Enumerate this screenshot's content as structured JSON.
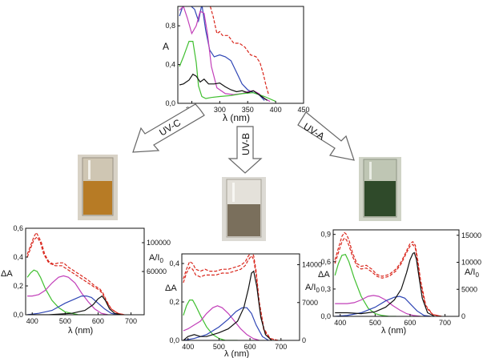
{
  "colors": {
    "black": "#111111",
    "red": "#d9261c",
    "green": "#3fbf2f",
    "magenta": "#c23fb9",
    "blue": "#2f46b5"
  },
  "arrows": [
    {
      "label": "UV-C"
    },
    {
      "label": "UV-B"
    },
    {
      "label": "UV-A"
    }
  ],
  "photos": [
    {
      "description_icon": "cuvette-amber-solution-icon",
      "tint": "#b77b25"
    },
    {
      "description_icon": "cuvette-grey-solution-icon",
      "tint": "#7a6f5c"
    },
    {
      "description_icon": "cuvette-green-solution-icon",
      "tint": "#2f4a2a"
    }
  ],
  "chart_data": [
    {
      "type": "line",
      "xlabel": "λ (nm)",
      "ylabel": "A",
      "xlim": [
        225,
        450
      ],
      "ylim": [
        0,
        1.0
      ],
      "xticks": [
        "250",
        "300",
        "350",
        "400",
        "450"
      ],
      "xtick_labels_shown": [
        "250",
        "300",
        "350",
        "400",
        "450"
      ],
      "yticks": [
        "0,0",
        "0,4",
        "0,8"
      ],
      "series": [
        {
          "color": "red",
          "dashed": true,
          "x": [
            283,
            288,
            295,
            300,
            305,
            315,
            325,
            335,
            345,
            355,
            365,
            372,
            378,
            383,
            388
          ],
          "y": [
            1.0,
            0.9,
            0.72,
            0.74,
            0.7,
            0.7,
            0.62,
            0.62,
            0.58,
            0.5,
            0.48,
            0.42,
            0.3,
            0.18,
            0.08
          ]
        },
        {
          "color": "blue",
          "x": [
            228,
            235,
            245,
            255,
            262,
            268,
            275,
            282,
            290,
            300,
            310,
            320,
            330,
            340,
            350,
            360,
            370,
            380
          ],
          "y": [
            0.9,
            1.02,
            1.02,
            0.97,
            0.85,
            1.02,
            0.75,
            0.55,
            0.48,
            0.5,
            0.48,
            0.44,
            0.32,
            0.2,
            0.14,
            0.11,
            0.09,
            0.03
          ]
        },
        {
          "color": "magenta",
          "x": [
            228,
            235,
            242,
            250,
            258,
            265,
            272,
            278,
            285,
            295,
            310,
            325,
            340,
            350,
            360,
            370,
            380,
            390
          ],
          "y": [
            0.96,
            1.0,
            0.88,
            0.72,
            0.8,
            0.95,
            0.93,
            0.72,
            0.38,
            0.16,
            0.1,
            0.09,
            0.1,
            0.12,
            0.13,
            0.1,
            0.05,
            0.02
          ]
        },
        {
          "color": "green",
          "x": [
            228,
            235,
            245,
            252,
            258,
            262,
            268,
            275,
            285,
            300,
            320,
            340,
            360,
            380,
            400
          ],
          "y": [
            0.38,
            0.48,
            0.64,
            0.64,
            0.42,
            0.18,
            0.07,
            0.05,
            0.06,
            0.07,
            0.08,
            0.1,
            0.11,
            0.07,
            0.02
          ]
        },
        {
          "color": "black",
          "x": [
            228,
            235,
            245,
            252,
            258,
            265,
            272,
            280,
            290,
            300,
            310,
            320,
            330,
            340,
            350,
            360,
            370,
            380,
            385
          ],
          "y": [
            0.19,
            0.2,
            0.24,
            0.3,
            0.28,
            0.22,
            0.25,
            0.2,
            0.2,
            0.21,
            0.17,
            0.14,
            0.12,
            0.13,
            0.11,
            0.13,
            0.09,
            0.05,
            0.03
          ]
        }
      ]
    },
    {
      "type": "line",
      "xlabel": "λ (nm)",
      "ylabel": "ΔA",
      "y2label": "A/I",
      "y2label_sub": "0",
      "xlim": [
        380,
        740
      ],
      "ylim": [
        0,
        0.6
      ],
      "y2lim": [
        0,
        120000
      ],
      "xticks": [
        "400",
        "500",
        "600",
        "700"
      ],
      "yticks": [
        "0,0",
        "0,2",
        "0,4",
        "0,6"
      ],
      "y2ticks": [
        "60000",
        "100000"
      ],
      "y2tick_values": [
        60000,
        100000
      ],
      "series": [
        {
          "color": "red",
          "dashed": true,
          "x": [
            385,
            395,
            405,
            412,
            420,
            428,
            438,
            450,
            465,
            480,
            495,
            510,
            530,
            550,
            570,
            590,
            605,
            615,
            625,
            640,
            660,
            680
          ],
          "y": [
            0.42,
            0.48,
            0.54,
            0.57,
            0.54,
            0.5,
            0.42,
            0.37,
            0.35,
            0.36,
            0.36,
            0.33,
            0.3,
            0.27,
            0.24,
            0.2,
            0.18,
            0.15,
            0.1,
            0.04,
            0.01,
            0.0
          ]
        },
        {
          "color": "red",
          "dashed": true,
          "x": [
            385,
            395,
            405,
            415,
            425,
            435,
            450,
            470,
            490,
            510,
            530,
            550,
            570,
            590,
            605,
            615,
            625,
            640,
            660,
            680
          ],
          "y": [
            0.4,
            0.46,
            0.52,
            0.54,
            0.5,
            0.42,
            0.36,
            0.34,
            0.34,
            0.31,
            0.28,
            0.25,
            0.22,
            0.19,
            0.17,
            0.14,
            0.09,
            0.04,
            0.01,
            0.0
          ]
        },
        {
          "color": "green",
          "x": [
            385,
            395,
            405,
            415,
            425,
            440,
            460,
            480,
            500,
            520,
            540,
            560
          ],
          "y": [
            0.26,
            0.29,
            0.31,
            0.3,
            0.26,
            0.18,
            0.1,
            0.05,
            0.02,
            0.01,
            0.0,
            0.0
          ]
        },
        {
          "color": "magenta",
          "x": [
            385,
            400,
            420,
            440,
            460,
            480,
            495,
            510,
            530,
            550,
            570,
            590,
            610,
            630
          ],
          "y": [
            0.13,
            0.13,
            0.14,
            0.17,
            0.22,
            0.26,
            0.27,
            0.26,
            0.22,
            0.15,
            0.09,
            0.04,
            0.01,
            0.0
          ]
        },
        {
          "color": "blue",
          "x": [
            385,
            420,
            460,
            500,
            530,
            550,
            565,
            580,
            600,
            620,
            640,
            660
          ],
          "y": [
            0.0,
            0.01,
            0.03,
            0.08,
            0.11,
            0.13,
            0.13,
            0.12,
            0.08,
            0.04,
            0.01,
            0.0
          ]
        },
        {
          "color": "black",
          "x": [
            385,
            450,
            520,
            560,
            585,
            600,
            612,
            622,
            635,
            650,
            670
          ],
          "y": [
            0.0,
            0.0,
            0.01,
            0.03,
            0.07,
            0.11,
            0.13,
            0.1,
            0.04,
            0.01,
            0.0
          ]
        }
      ]
    },
    {
      "type": "line",
      "xlabel": "λ (nm)",
      "ylabel": "ΔA",
      "y2label": "A/I",
      "y2label_sub": "0",
      "xlim": [
        380,
        760
      ],
      "ylim": [
        0,
        0.45
      ],
      "y2lim": [
        0,
        16000
      ],
      "xticks": [
        "400",
        "500",
        "600",
        "700"
      ],
      "yticks": [
        "0,0",
        "0,2",
        "0,4"
      ],
      "y2ticks": [
        "0",
        "7000",
        "14000"
      ],
      "y2tick_values": [
        0,
        7000,
        14000
      ],
      "series": [
        {
          "color": "red",
          "dashed": true,
          "x": [
            385,
            395,
            405,
            415,
            425,
            440,
            455,
            470,
            490,
            510,
            530,
            550,
            570,
            585,
            595,
            605,
            612,
            620,
            630,
            645,
            665,
            690
          ],
          "y": [
            0.32,
            0.37,
            0.41,
            0.4,
            0.37,
            0.36,
            0.37,
            0.36,
            0.36,
            0.37,
            0.37,
            0.38,
            0.39,
            0.41,
            0.44,
            0.46,
            0.44,
            0.36,
            0.2,
            0.06,
            0.01,
            0.0
          ]
        },
        {
          "color": "red",
          "dashed": true,
          "x": [
            385,
            395,
            405,
            415,
            425,
            440,
            455,
            470,
            490,
            510,
            530,
            550,
            570,
            585,
            595,
            605,
            612,
            620,
            630,
            645,
            665,
            690
          ],
          "y": [
            0.3,
            0.35,
            0.38,
            0.37,
            0.34,
            0.33,
            0.34,
            0.34,
            0.34,
            0.35,
            0.35,
            0.36,
            0.37,
            0.39,
            0.42,
            0.44,
            0.42,
            0.34,
            0.18,
            0.05,
            0.01,
            0.0
          ]
        },
        {
          "color": "green",
          "x": [
            385,
            395,
            405,
            415,
            425,
            440,
            460,
            480,
            500,
            520,
            540,
            560
          ],
          "y": [
            0.13,
            0.18,
            0.21,
            0.21,
            0.18,
            0.13,
            0.07,
            0.03,
            0.01,
            0.0,
            0.0,
            0.0
          ]
        },
        {
          "color": "magenta",
          "x": [
            385,
            400,
            420,
            440,
            460,
            480,
            495,
            510,
            530,
            550,
            570,
            590,
            610,
            630
          ],
          "y": [
            0.05,
            0.06,
            0.08,
            0.1,
            0.14,
            0.17,
            0.18,
            0.17,
            0.14,
            0.1,
            0.06,
            0.03,
            0.01,
            0.0
          ]
        },
        {
          "color": "blue",
          "x": [
            385,
            420,
            460,
            500,
            530,
            555,
            575,
            590,
            605,
            620,
            640,
            660
          ],
          "y": [
            0.0,
            0.01,
            0.03,
            0.07,
            0.11,
            0.15,
            0.17,
            0.17,
            0.14,
            0.08,
            0.02,
            0.0
          ]
        },
        {
          "color": "black",
          "x": [
            385,
            400,
            420,
            440,
            460,
            480,
            500,
            530,
            560,
            580,
            595,
            605,
            612,
            622,
            635,
            650,
            670
          ],
          "y": [
            0.0,
            0.02,
            0.03,
            0.02,
            0.02,
            0.03,
            0.04,
            0.06,
            0.1,
            0.17,
            0.27,
            0.35,
            0.36,
            0.28,
            0.12,
            0.03,
            0.0
          ]
        }
      ]
    },
    {
      "type": "line",
      "xlabel": "λ (nm)",
      "ylabel": "ΔA",
      "y2label": "A/I",
      "y2label_sub": "0",
      "xlim": [
        380,
        740
      ],
      "ylim": [
        0,
        0.95
      ],
      "y2lim": [
        0,
        16000
      ],
      "xticks": [
        "400",
        "500",
        "600",
        "700"
      ],
      "yticks": [
        "0,0",
        "0,3",
        "0,6",
        "0,9"
      ],
      "y2ticks": [
        "0",
        "5000",
        "10000",
        "15000"
      ],
      "y2tick_values": [
        0,
        5000,
        10000,
        15000
      ],
      "series": [
        {
          "color": "red",
          "dashed": true,
          "x": [
            385,
            395,
            405,
            412,
            418,
            425,
            435,
            448,
            460,
            475,
            490,
            505,
            520,
            540,
            560,
            575,
            590,
            600,
            608,
            615,
            622,
            630,
            645,
            665,
            690
          ],
          "y": [
            0.62,
            0.75,
            0.88,
            0.92,
            0.9,
            0.84,
            0.7,
            0.58,
            0.55,
            0.56,
            0.52,
            0.46,
            0.44,
            0.46,
            0.52,
            0.6,
            0.72,
            0.8,
            0.82,
            0.78,
            0.62,
            0.4,
            0.12,
            0.02,
            0.0
          ]
        },
        {
          "color": "red",
          "dashed": true,
          "x": [
            385,
            395,
            405,
            412,
            418,
            425,
            435,
            448,
            460,
            475,
            490,
            505,
            520,
            540,
            560,
            575,
            590,
            600,
            608,
            615,
            622,
            630,
            645,
            665,
            690
          ],
          "y": [
            0.58,
            0.7,
            0.82,
            0.86,
            0.84,
            0.78,
            0.66,
            0.55,
            0.52,
            0.53,
            0.49,
            0.44,
            0.42,
            0.44,
            0.5,
            0.58,
            0.7,
            0.77,
            0.79,
            0.75,
            0.58,
            0.36,
            0.1,
            0.02,
            0.0
          ]
        },
        {
          "color": "green",
          "x": [
            385,
            395,
            405,
            415,
            425,
            440,
            460,
            480,
            500,
            520,
            540,
            560
          ],
          "y": [
            0.45,
            0.58,
            0.67,
            0.68,
            0.6,
            0.42,
            0.22,
            0.09,
            0.03,
            0.01,
            0.0,
            0.0
          ]
        },
        {
          "color": "magenta",
          "x": [
            385,
            400,
            420,
            440,
            460,
            480,
            495,
            510,
            530,
            550,
            570,
            590,
            610,
            630
          ],
          "y": [
            0.14,
            0.14,
            0.14,
            0.15,
            0.18,
            0.22,
            0.23,
            0.22,
            0.18,
            0.12,
            0.07,
            0.03,
            0.01,
            0.0
          ]
        },
        {
          "color": "blue",
          "x": [
            385,
            420,
            460,
            500,
            530,
            555,
            570,
            585,
            600,
            620,
            640,
            660
          ],
          "y": [
            0.0,
            0.01,
            0.04,
            0.1,
            0.17,
            0.21,
            0.22,
            0.2,
            0.14,
            0.06,
            0.01,
            0.0
          ]
        },
        {
          "color": "black",
          "x": [
            385,
            420,
            460,
            500,
            530,
            555,
            575,
            590,
            600,
            608,
            612,
            618,
            625,
            635,
            650,
            670
          ],
          "y": [
            0.04,
            0.04,
            0.03,
            0.05,
            0.1,
            0.18,
            0.3,
            0.48,
            0.62,
            0.69,
            0.7,
            0.63,
            0.45,
            0.2,
            0.04,
            0.0
          ]
        }
      ]
    }
  ]
}
